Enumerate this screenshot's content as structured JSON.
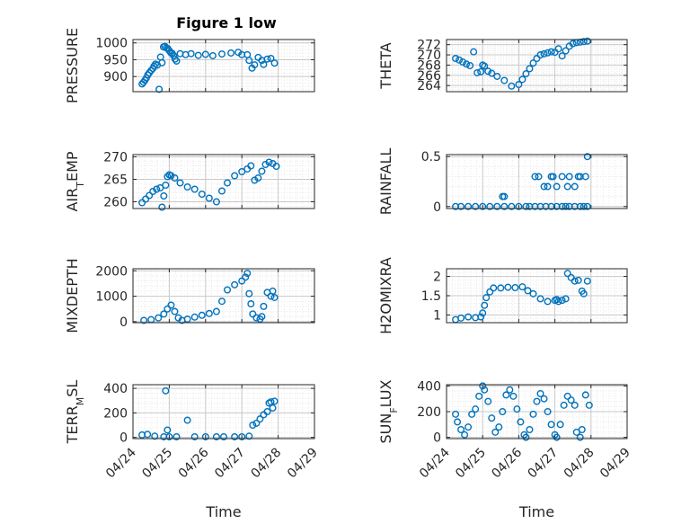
{
  "figure": {
    "title": "Figure 1 low"
  },
  "colors": {
    "marker": "#0072BD",
    "axis": "#262626",
    "grid": "#c8c8c8",
    "minor_grid": "#e4e4e4"
  },
  "chart_data": [
    {
      "type": "scatter",
      "ylabel": "PRESSURE",
      "ylabel_sub": "",
      "ylabel_tail": "",
      "xlabel": "",
      "xlim": [
        0,
        5
      ],
      "ylim": [
        855,
        1010
      ],
      "yticks": [
        900,
        950,
        1000
      ],
      "show_x_tick_labels": false,
      "grid": true,
      "x": [
        0.25,
        0.29,
        0.33,
        0.37,
        0.41,
        0.45,
        0.5,
        0.55,
        0.58,
        0.62,
        0.67,
        0.72,
        0.76,
        0.8,
        0.84,
        0.88,
        0.92,
        0.96,
        1.0,
        1.04,
        1.08,
        1.12,
        1.16,
        1.2,
        1.3,
        1.45,
        1.6,
        1.8,
        2.0,
        2.2,
        2.45,
        2.7,
        2.9,
        3.0,
        3.15,
        3.2,
        3.28,
        3.35,
        3.45,
        3.55,
        3.6,
        3.7,
        3.8,
        3.9
      ],
      "y": [
        878,
        883,
        889,
        896,
        905,
        911,
        918,
        924,
        931,
        937,
        934,
        862,
        958,
        941,
        988,
        990,
        985,
        983,
        977,
        971,
        969,
        962,
        952,
        946,
        968,
        965,
        968,
        963,
        966,
        962,
        967,
        970,
        972,
        965,
        965,
        948,
        925,
        935,
        957,
        948,
        936,
        952,
        954,
        940
      ]
    },
    {
      "type": "scatter",
      "ylabel": "THETA",
      "ylabel_sub": "",
      "ylabel_tail": "",
      "xlabel": "",
      "xlim": [
        0,
        5
      ],
      "ylim": [
        262.8,
        273
      ],
      "yticks": [
        264,
        266,
        268,
        270,
        272
      ],
      "show_x_tick_labels": false,
      "grid": true,
      "x": [
        0.25,
        0.35,
        0.45,
        0.55,
        0.65,
        0.75,
        0.85,
        0.95,
        1.0,
        1.05,
        1.15,
        1.25,
        1.4,
        1.6,
        1.8,
        2.0,
        2.1,
        2.2,
        2.3,
        2.4,
        2.5,
        2.6,
        2.7,
        2.8,
        2.9,
        3.0,
        3.1,
        3.2,
        3.3,
        3.4,
        3.5,
        3.6,
        3.7,
        3.8,
        3.9
      ],
      "y": [
        269.3,
        269.0,
        268.6,
        268.2,
        267.9,
        270.6,
        266.5,
        266.7,
        268.0,
        267.8,
        266.8,
        266.4,
        265.8,
        265.0,
        263.9,
        264.2,
        265.2,
        266.3,
        267.3,
        268.4,
        269.3,
        270.0,
        270.2,
        270.4,
        270.6,
        270.5,
        271.2,
        269.8,
        270.8,
        271.7,
        272.2,
        272.4,
        272.5,
        272.6,
        272.7
      ]
    },
    {
      "type": "scatter",
      "ylabel": "AIR",
      "ylabel_sub": "T",
      "ylabel_tail": "EMP",
      "xlabel": "",
      "xlim": [
        0,
        5
      ],
      "ylim": [
        258.5,
        270.5
      ],
      "yticks": [
        260,
        265,
        270
      ],
      "show_x_tick_labels": false,
      "grid": true,
      "x": [
        0.25,
        0.35,
        0.45,
        0.55,
        0.65,
        0.75,
        0.8,
        0.85,
        0.9,
        0.95,
        1.0,
        1.05,
        1.15,
        1.3,
        1.5,
        1.7,
        1.9,
        2.1,
        2.3,
        2.45,
        2.6,
        2.8,
        3.0,
        3.15,
        3.25,
        3.35,
        3.45,
        3.55,
        3.65,
        3.75,
        3.85,
        3.95
      ],
      "y": [
        259.8,
        260.6,
        261.4,
        262.3,
        262.8,
        263.1,
        258.8,
        261.3,
        263.7,
        265.6,
        266.0,
        265.8,
        265.3,
        264.2,
        263.3,
        262.8,
        261.7,
        260.8,
        260.0,
        262.4,
        264.2,
        265.8,
        266.7,
        267.3,
        268.0,
        264.8,
        265.3,
        266.8,
        268.3,
        268.8,
        268.5,
        267.9
      ]
    },
    {
      "type": "scatter",
      "ylabel": "RAINFALL",
      "ylabel_sub": "",
      "ylabel_tail": "",
      "xlabel": "",
      "xlim": [
        0,
        5
      ],
      "ylim": [
        -0.02,
        0.52
      ],
      "yticks": [
        0,
        0.5
      ],
      "show_x_tick_labels": false,
      "grid": true,
      "x": [
        0.25,
        0.4,
        0.6,
        0.8,
        1.0,
        1.2,
        1.4,
        1.6,
        1.8,
        2.0,
        2.2,
        2.3,
        2.45,
        2.6,
        2.75,
        2.9,
        3.05,
        3.2,
        3.3,
        3.4,
        3.55,
        3.7,
        3.8,
        3.9,
        1.55,
        1.6,
        2.45,
        2.55,
        2.7,
        2.8,
        2.9,
        2.95,
        3.05,
        3.2,
        3.35,
        3.4,
        3.55,
        3.65,
        3.7,
        3.85,
        3.9
      ],
      "y": [
        0,
        0,
        0,
        0,
        0,
        0,
        0,
        0,
        0,
        0,
        0,
        0,
        0,
        0,
        0,
        0,
        0,
        0,
        0,
        0,
        0,
        0,
        0,
        0,
        0.1,
        0.1,
        0.3,
        0.3,
        0.2,
        0.2,
        0.3,
        0.3,
        0.2,
        0.3,
        0.2,
        0.3,
        0.2,
        0.3,
        0.3,
        0.3,
        0.5
      ]
    },
    {
      "type": "scatter",
      "ylabel": "MIXDEPTH",
      "ylabel_sub": "",
      "ylabel_tail": "",
      "xlabel": "",
      "xlim": [
        0,
        5
      ],
      "ylim": [
        -40,
        2080
      ],
      "yticks": [
        0,
        1000,
        2000
      ],
      "show_x_tick_labels": false,
      "grid": true,
      "x": [
        0.3,
        0.5,
        0.7,
        0.85,
        0.95,
        1.05,
        1.15,
        1.25,
        1.35,
        1.5,
        1.7,
        1.9,
        2.1,
        2.3,
        2.45,
        2.6,
        2.8,
        3.0,
        3.1,
        3.15,
        3.2,
        3.25,
        3.3,
        3.4,
        3.5,
        3.55,
        3.6,
        3.7,
        3.8,
        3.85,
        3.9
      ],
      "y": [
        50,
        80,
        150,
        300,
        500,
        650,
        400,
        150,
        50,
        100,
        180,
        250,
        320,
        400,
        800,
        1250,
        1450,
        1600,
        1750,
        1900,
        1100,
        700,
        300,
        150,
        100,
        200,
        600,
        1150,
        1000,
        1200,
        950
      ]
    },
    {
      "type": "scatter",
      "ylabel": "H2OMIXRA",
      "ylabel_sub": "",
      "ylabel_tail": "",
      "xlabel": "",
      "xlim": [
        0,
        5
      ],
      "ylim": [
        0.8,
        2.2
      ],
      "yticks": [
        1,
        1.5,
        2
      ],
      "show_x_tick_labels": false,
      "grid": true,
      "x": [
        0.25,
        0.4,
        0.6,
        0.8,
        0.95,
        1.0,
        1.05,
        1.1,
        1.2,
        1.3,
        1.5,
        1.7,
        1.9,
        2.1,
        2.25,
        2.4,
        2.6,
        2.8,
        3.0,
        3.05,
        3.1,
        3.2,
        3.3,
        3.35,
        3.45,
        3.55,
        3.65,
        3.75,
        3.8,
        3.9
      ],
      "y": [
        0.88,
        0.92,
        0.95,
        0.93,
        0.95,
        1.05,
        1.25,
        1.45,
        1.6,
        1.7,
        1.7,
        1.72,
        1.71,
        1.73,
        1.63,
        1.55,
        1.42,
        1.35,
        1.38,
        1.4,
        1.35,
        1.38,
        1.42,
        2.08,
        1.97,
        1.88,
        1.9,
        1.62,
        1.55,
        1.88
      ]
    },
    {
      "type": "scatter",
      "ylabel": "TERR",
      "ylabel_sub": "M",
      "ylabel_tail": "SL",
      "xlabel": "Time",
      "xlim": [
        0,
        5
      ],
      "ylim": [
        -10,
        430
      ],
      "yticks": [
        0,
        200,
        400
      ],
      "show_x_tick_labels": true,
      "x_tick_labels": [
        "04/24",
        "04/25",
        "04/26",
        "04/27",
        "04/28",
        "04/29"
      ],
      "grid": true,
      "x": [
        0.25,
        0.4,
        0.6,
        0.85,
        0.9,
        0.95,
        1.0,
        1.2,
        1.5,
        1.7,
        2.0,
        2.3,
        2.5,
        2.8,
        3.0,
        3.2,
        3.3,
        3.4,
        3.5,
        3.6,
        3.7,
        3.75,
        3.8,
        3.85,
        3.9
      ],
      "y": [
        20,
        25,
        10,
        5,
        380,
        60,
        5,
        5,
        140,
        5,
        5,
        5,
        5,
        5,
        5,
        10,
        100,
        115,
        150,
        185,
        210,
        280,
        290,
        240,
        295
      ]
    },
    {
      "type": "scatter",
      "ylabel": "SUN",
      "ylabel_sub": "F",
      "ylabel_tail": "LUX",
      "xlabel": "Time",
      "xlim": [
        0,
        5
      ],
      "ylim": [
        -10,
        410
      ],
      "yticks": [
        0,
        200,
        400
      ],
      "show_x_tick_labels": true,
      "x_tick_labels": [
        "04/24",
        "04/25",
        "04/26",
        "04/27",
        "04/28",
        "04/29"
      ],
      "grid": true,
      "x": [
        0.25,
        0.3,
        0.4,
        0.5,
        0.6,
        0.7,
        0.8,
        0.9,
        1.0,
        1.05,
        1.15,
        1.25,
        1.35,
        1.45,
        1.55,
        1.65,
        1.75,
        1.85,
        1.95,
        2.05,
        2.15,
        2.2,
        2.3,
        2.4,
        2.5,
        2.6,
        2.7,
        2.8,
        2.9,
        3.0,
        3.05,
        3.15,
        3.25,
        3.35,
        3.45,
        3.55,
        3.6,
        3.7,
        3.75,
        3.85,
        3.95
      ],
      "y": [
        180,
        120,
        60,
        20,
        80,
        180,
        220,
        320,
        400,
        370,
        280,
        150,
        40,
        80,
        200,
        330,
        370,
        320,
        220,
        120,
        20,
        0,
        60,
        180,
        280,
        340,
        300,
        200,
        100,
        20,
        0,
        100,
        250,
        320,
        290,
        250,
        40,
        0,
        60,
        330,
        250
      ]
    }
  ]
}
